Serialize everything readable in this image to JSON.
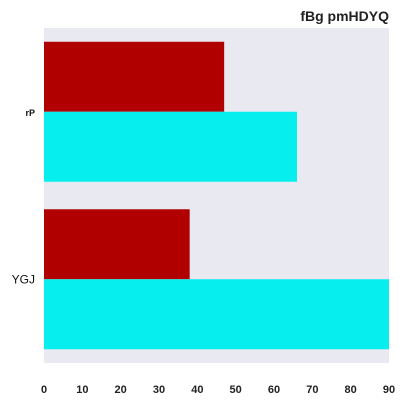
{
  "chart_data": {
    "type": "bar",
    "orientation": "horizontal",
    "title": "fBg pmHDYQ",
    "xlabel": "",
    "ylabel": "",
    "categories": [
      "rP",
      "YGJ"
    ],
    "xlim": [
      0,
      90
    ],
    "x_ticks": [
      0,
      10,
      20,
      30,
      40,
      50,
      60,
      70,
      80,
      90
    ],
    "series": [
      {
        "color": "#b00000",
        "values": [
          47,
          38
        ]
      },
      {
        "color": "#07eeee",
        "values": [
          66,
          90
        ]
      }
    ],
    "grid": false,
    "legend": "none",
    "background": "#e9e9f2"
  }
}
